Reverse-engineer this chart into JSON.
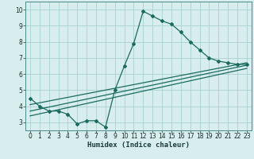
{
  "xlabel": "Humidex (Indice chaleur)",
  "ylabel": "",
  "background_color": "#d8eeee",
  "grid_color": "#aacfcf",
  "line_color": "#1a6b5e",
  "xlim": [
    -0.5,
    23.5
  ],
  "ylim": [
    2.5,
    10.5
  ],
  "xticks": [
    0,
    1,
    2,
    3,
    4,
    5,
    6,
    7,
    8,
    9,
    10,
    11,
    12,
    13,
    14,
    15,
    16,
    17,
    18,
    19,
    20,
    21,
    22,
    23
  ],
  "yticks": [
    3,
    4,
    5,
    6,
    7,
    8,
    9,
    10
  ],
  "series1_x": [
    0,
    1,
    2,
    3,
    4,
    5,
    6,
    7,
    8,
    9,
    10,
    11,
    12,
    13,
    14,
    15,
    16,
    17,
    18,
    19,
    20,
    21,
    22,
    23
  ],
  "series1_y": [
    4.5,
    4.0,
    3.7,
    3.7,
    3.5,
    2.9,
    3.1,
    3.1,
    2.7,
    5.0,
    6.5,
    7.9,
    9.9,
    9.6,
    9.3,
    9.1,
    8.6,
    8.0,
    7.5,
    7.0,
    6.8,
    6.7,
    6.6,
    6.6
  ],
  "series2_x": [
    0,
    23
  ],
  "series2_y": [
    4.1,
    6.7
  ],
  "series3_x": [
    0,
    23
  ],
  "series3_y": [
    3.7,
    6.55
  ],
  "series4_x": [
    0,
    23
  ],
  "series4_y": [
    3.4,
    6.35
  ],
  "tick_fontsize": 5.5,
  "xlabel_fontsize": 6.5
}
